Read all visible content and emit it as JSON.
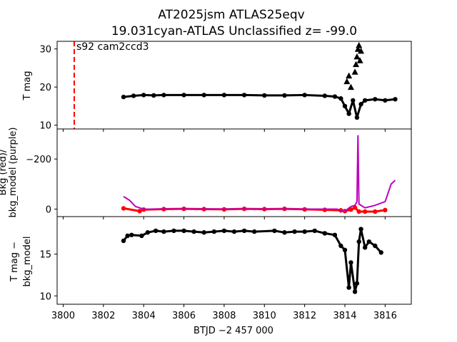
{
  "title_line1": "AT2025jsm  ATLAS25eqv",
  "title_line2": "19.031cyan-ATLAS Unclassified z= -99.0",
  "xlabel": "BTJD −2 457 000",
  "x_ticks": [
    "3800",
    "3802",
    "3804",
    "3806",
    "3808",
    "3810",
    "3812",
    "3814",
    "3816"
  ],
  "colors": {
    "obs": "#000000",
    "bkg": "#ff0000",
    "bkg_model": "#bf00bf",
    "marker_line": "#ff0000"
  },
  "chart_data": [
    {
      "type": "scatter",
      "panel": "top",
      "ylabel": "T mag",
      "y_inverted": true,
      "xlim": [
        3799.7,
        3817.3
      ],
      "ylim": [
        32,
        9
      ],
      "y_ticks": [
        "10",
        "20",
        "30"
      ],
      "annotation": "s92 cam2ccd3",
      "vline_x": 3800.55,
      "series": [
        {
          "style": "dots",
          "x": [
            3803.0,
            3803.5,
            3804.0,
            3804.5,
            3805.0,
            3806.0,
            3807.0,
            3808.0,
            3809.0,
            3810.0,
            3811.0,
            3812.0,
            3813.0,
            3813.5,
            3813.8,
            3814.0,
            3814.2,
            3814.4,
            3814.6,
            3814.8,
            3815.0,
            3815.5,
            3816.0,
            3816.5
          ],
          "y": [
            17.4,
            17.7,
            17.9,
            17.8,
            17.9,
            17.9,
            17.9,
            17.9,
            17.9,
            17.8,
            17.8,
            17.9,
            17.7,
            17.5,
            17.0,
            15.0,
            13.0,
            16.5,
            12.0,
            15.5,
            16.5,
            16.8,
            16.5,
            16.8
          ]
        },
        {
          "style": "triangles",
          "x": [
            3814.1,
            3814.2,
            3814.3,
            3814.5,
            3814.55,
            3814.6,
            3814.65,
            3814.7,
            3814.75,
            3814.8
          ],
          "y": [
            21.5,
            23.0,
            20.0,
            24.0,
            26.0,
            28.0,
            30.0,
            31.0,
            27.0,
            29.5
          ]
        }
      ]
    },
    {
      "type": "line",
      "panel": "middle",
      "ylabel": "Bkg (red)/\nbkg_model (purple)",
      "xlim": [
        3799.7,
        3817.3
      ],
      "ylim": [
        -320,
        30
      ],
      "y_ticks": [
        "0",
        "−200"
      ],
      "series": [
        {
          "style": "red-dots",
          "x": [
            3803.0,
            3803.8,
            3804.0,
            3805.0,
            3806.0,
            3807.0,
            3808.0,
            3809.0,
            3810.0,
            3811.0,
            3812.0,
            3813.0,
            3813.8,
            3814.0,
            3814.3,
            3814.5,
            3814.7,
            3815.0,
            3815.5,
            3816.0
          ],
          "y": [
            -3,
            8,
            2,
            0,
            -1,
            0,
            1,
            -1,
            0,
            -1,
            1,
            3,
            5,
            8,
            2,
            -6,
            10,
            10,
            10,
            4
          ]
        },
        {
          "style": "purple-line",
          "x": [
            3803.0,
            3803.3,
            3803.6,
            3804.0,
            3805.0,
            3806.0,
            3807.0,
            3808.0,
            3809.0,
            3810.0,
            3811.0,
            3812.0,
            3813.0,
            3813.6,
            3814.0,
            3814.3,
            3814.5,
            3814.6,
            3814.65,
            3814.7,
            3815.0,
            3815.5,
            3816.0,
            3816.3,
            3816.5
          ],
          "y": [
            -50,
            -35,
            -10,
            0,
            0,
            0,
            0,
            0,
            0,
            0,
            0,
            0,
            0,
            0,
            8,
            -10,
            -15,
            -30,
            -295,
            -20,
            -5,
            -15,
            -30,
            -100,
            -115
          ]
        }
      ]
    },
    {
      "type": "scatter",
      "panel": "bottom",
      "ylabel": "T mag −\nbkg_model",
      "y_inverted": true,
      "xlim": [
        3799.7,
        3817.3
      ],
      "ylim": [
        19.5,
        9.0
      ],
      "y_ticks": [
        "10",
        "15"
      ],
      "series": [
        {
          "style": "dots",
          "x": [
            3803.0,
            3803.2,
            3803.4,
            3803.9,
            3804.2,
            3804.6,
            3805.0,
            3805.5,
            3806.0,
            3806.5,
            3807.0,
            3807.5,
            3808.0,
            3808.5,
            3809.0,
            3809.5,
            3810.5,
            3811.0,
            3811.5,
            3812.0,
            3812.5,
            3813.0,
            3813.5,
            3813.8,
            3814.0,
            3814.2,
            3814.3,
            3814.5,
            3814.6,
            3814.7,
            3814.8,
            3815.0,
            3815.2,
            3815.5,
            3815.8
          ],
          "y": [
            16.6,
            17.2,
            17.3,
            17.2,
            17.6,
            17.8,
            17.7,
            17.8,
            17.8,
            17.7,
            17.6,
            17.7,
            17.8,
            17.7,
            17.8,
            17.7,
            17.8,
            17.6,
            17.7,
            17.7,
            17.8,
            17.5,
            17.3,
            16.0,
            15.5,
            11.0,
            14.0,
            10.5,
            11.5,
            16.5,
            18.0,
            15.8,
            16.5,
            16.0,
            15.2
          ]
        }
      ]
    }
  ]
}
